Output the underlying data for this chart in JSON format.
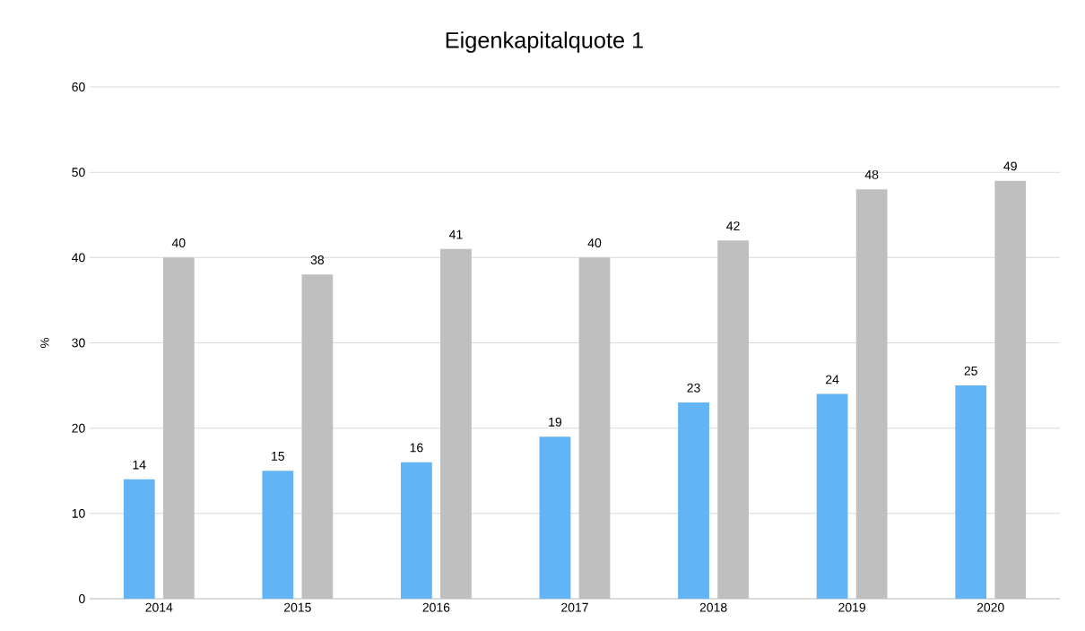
{
  "chart_data": {
    "type": "bar",
    "title": "Eigenkapitalquote 1",
    "ylabel": "%",
    "categories": [
      "2014",
      "2015",
      "2016",
      "2017",
      "2018",
      "2019",
      "2020"
    ],
    "series": [
      {
        "color": "#63b4f4",
        "values": [
          14,
          15,
          16,
          19,
          23,
          24,
          25
        ]
      },
      {
        "color": "#bfbfbf",
        "values": [
          40,
          38,
          41,
          40,
          42,
          48,
          49
        ]
      }
    ],
    "ylim": [
      0,
      60
    ],
    "yticks": [
      0,
      10,
      20,
      30,
      40,
      50,
      60
    ],
    "grid": "y",
    "data_labels": true
  }
}
